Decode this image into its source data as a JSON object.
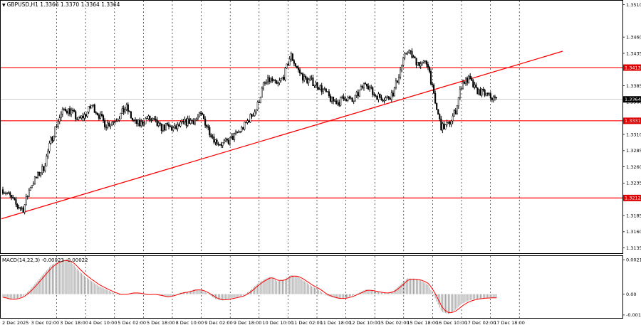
{
  "header": {
    "symbol_line": "GBPUSD,H1  1.3366 1.3370 1.3364 1.3364"
  },
  "price_axis": {
    "ticks": [
      "1.3510",
      "1.3460",
      "1.3435",
      "1.3385",
      "1.3360",
      "1.3310",
      "1.3285",
      "1.3260",
      "1.3235",
      "1.3185",
      "1.3160",
      "1.3135"
    ],
    "ylim": [
      1.3128,
      1.3515
    ]
  },
  "levels": [
    {
      "label": "1.3413",
      "value": 1.3413
    },
    {
      "label": "1.3331",
      "value": 1.3331
    },
    {
      "label": "1.3212",
      "value": 1.3212
    }
  ],
  "current_price": {
    "label": "1.3364",
    "value": 1.3364
  },
  "time_axis": {
    "labels": [
      "2 Dec 2025",
      "3 Dec 02:00",
      "3 Dec 18:00",
      "4 Dec 10:00",
      "5 Dec 02:00",
      "5 Dec 18:00",
      "8 Dec 10:00",
      "9 Dec 02:00",
      "9 Dec 18:00",
      "10 Dec 10:00",
      "11 Dec 02:00",
      "11 Dec 18:00",
      "12 Dec 10:00",
      "15 Dec 02:00",
      "15 Dec 18:00",
      "16 Dec 10:00",
      "17 Dec 02:00",
      "17 Dec 18:00"
    ]
  },
  "macd": {
    "label": "MACD(14,22,3) -0.00023 -0.00022",
    "ticks": [
      "0.00216",
      "0.00",
      "-0.00131"
    ],
    "ylim": [
      -0.00145,
      0.00235
    ]
  },
  "colors": {
    "level_line": "#ff0000",
    "trend_line": "#ff0000",
    "candle": "#000000",
    "grid": "#000000",
    "macd_hist": "#a0a0a0",
    "macd_signal": "#ff0000",
    "badge_red": "#e00000",
    "badge_dark": "#000000"
  },
  "chart_data": {
    "type": "candlestick",
    "x": [
      "2 Dec 2025",
      "3 Dec 02:00",
      "3 Dec 18:00",
      "4 Dec 10:00",
      "5 Dec 02:00",
      "5 Dec 18:00",
      "8 Dec 10:00",
      "9 Dec 02:00",
      "9 Dec 18:00",
      "10 Dec 10:00",
      "11 Dec 02:00",
      "11 Dec 18:00",
      "12 Dec 10:00",
      "15 Dec 02:00",
      "15 Dec 18:00",
      "16 Dec 10:00",
      "17 Dec 02:00",
      "17 Dec 18:00"
    ],
    "close_path": [
      1.3225,
      1.3215,
      1.32,
      1.3195,
      1.323,
      1.3245,
      1.326,
      1.33,
      1.333,
      1.335,
      1.3345,
      1.3332,
      1.334,
      1.3355,
      1.334,
      1.3325,
      1.333,
      1.3338,
      1.3352,
      1.333,
      1.3325,
      1.3335,
      1.333,
      1.332,
      1.3322,
      1.3318,
      1.3325,
      1.333,
      1.3332,
      1.334,
      1.3318,
      1.33,
      1.3295,
      1.33,
      1.331,
      1.332,
      1.3335,
      1.335,
      1.3385,
      1.3395,
      1.3385,
      1.34,
      1.3432,
      1.341,
      1.3395,
      1.3392,
      1.3385,
      1.3375,
      1.3362,
      1.336,
      1.3368,
      1.336,
      1.3375,
      1.3392,
      1.3372,
      1.3368,
      1.3365,
      1.3375,
      1.341,
      1.3442,
      1.3425,
      1.3418,
      1.342,
      1.336,
      1.332,
      1.3325,
      1.3345,
      1.339,
      1.3395,
      1.3378,
      1.3374,
      1.3368,
      1.3364
    ],
    "levels": [
      1.3413,
      1.3331,
      1.3212
    ],
    "trend_line": [
      [
        0,
        1.318
      ],
      [
        71,
        1.3436
      ]
    ],
    "macd_hist_path": [
      -0.0002,
      -0.00035,
      -0.0003,
      -0.0001,
      0.0003,
      0.0008,
      0.0013,
      0.0018,
      0.00205,
      0.00216,
      0.002,
      0.0015,
      0.0011,
      0.0008,
      0.0005,
      0.0003,
      0.0001,
      -5e-05,
      0.0,
      0.0001,
      5e-05,
      -5e-05,
      0.0,
      -0.0001,
      -0.0002,
      -5e-05,
      0.0001,
      0.00015,
      0.0003,
      0.00025,
      0.0,
      -0.0003,
      -0.0004,
      -0.0003,
      -0.0002,
      -0.0001,
      0.0002,
      0.0006,
      0.0009,
      0.0011,
      0.0008,
      0.0009,
      0.0012,
      0.0011,
      0.0008,
      0.0005,
      0.0003,
      -5e-05,
      -0.0002,
      -0.0003,
      -0.00025,
      -0.0001,
      0.0001,
      0.0003,
      0.0002,
      0.0001,
      5e-05,
      0.0002,
      0.0006,
      0.001,
      0.00095,
      0.00085,
      0.0006,
      -0.0002,
      -0.0011,
      -0.00125,
      -0.001,
      -0.0006,
      -0.0004,
      -0.0003,
      -0.00025,
      -0.00023,
      -0.00023
    ]
  }
}
